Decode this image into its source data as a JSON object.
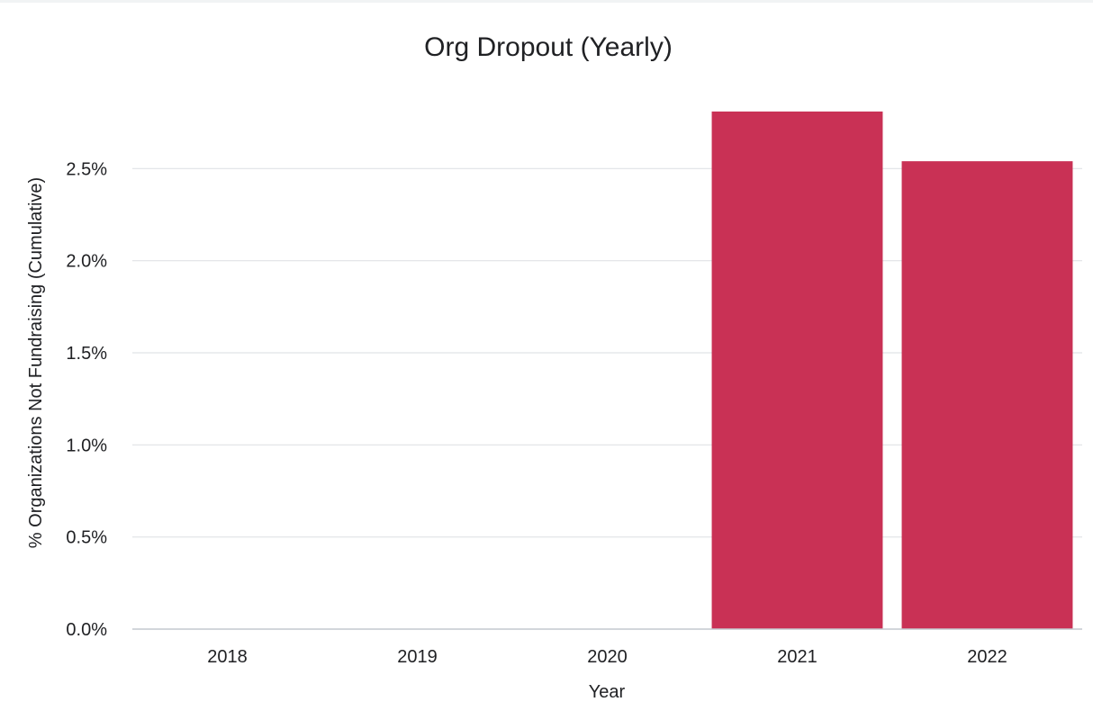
{
  "chart_data": {
    "type": "bar",
    "title": "Org Dropout (Yearly)",
    "xlabel": "Year",
    "ylabel": "% Organizations Not Fundraising (Cumulative)",
    "categories": [
      "2018",
      "2019",
      "2020",
      "2021",
      "2022"
    ],
    "values": [
      0,
      0,
      0,
      2.81,
      2.54
    ],
    "ylim": [
      0,
      3.0
    ],
    "yticks": [
      0.0,
      0.5,
      1.0,
      1.5,
      2.0,
      2.5
    ],
    "ytick_labels": [
      "0.0%",
      "0.5%",
      "1.0%",
      "1.5%",
      "2.0%",
      "2.5%"
    ],
    "bar_color": "#c93155",
    "grid": true,
    "legend": "none"
  }
}
